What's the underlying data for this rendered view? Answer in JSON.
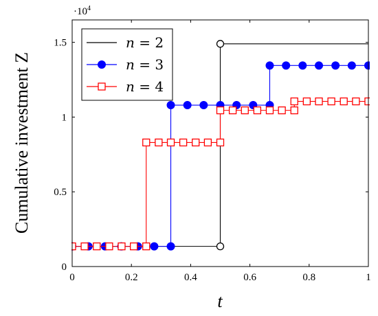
{
  "chart_data": {
    "type": "line",
    "step": true,
    "xlabel": "t",
    "ylabel": "Cumulative investment Z",
    "yscale_label": "·10",
    "yscale_exponent": "4",
    "xlim": [
      0,
      1
    ],
    "ylim": [
      0,
      16500
    ],
    "xticks": [
      0,
      0.2,
      0.4,
      0.6,
      0.8,
      1
    ],
    "xtick_labels": [
      "0",
      "0.2",
      "0.4",
      "0.6",
      "0.8",
      "1"
    ],
    "yticks": [
      0,
      5000,
      10000,
      15000
    ],
    "ytick_labels": [
      "0",
      "0.5",
      "1",
      "1.5"
    ],
    "grid": false,
    "legend_position": "top-left",
    "series": [
      {
        "name": "n = 2",
        "legend_var": "n",
        "legend_eq": "= 2",
        "color": "#000000",
        "marker": "open-circle",
        "steps": [
          {
            "x0": 0,
            "x1": 0.5,
            "y": 1350
          },
          {
            "x0": 0.5,
            "x1": 1,
            "y": 14900
          }
        ],
        "markers": [
          {
            "x": 0.5,
            "y": 1350
          },
          {
            "x": 0.5,
            "y": 14900
          }
        ]
      },
      {
        "name": "n = 3",
        "legend_var": "n",
        "legend_eq": "= 3",
        "color": "#0000ff",
        "marker": "filled-circle",
        "steps": [
          {
            "x0": 0,
            "x1": 0.333,
            "y": 1350
          },
          {
            "x0": 0.333,
            "x1": 0.667,
            "y": 10800
          },
          {
            "x0": 0.667,
            "x1": 1,
            "y": 13450
          }
        ],
        "markers": [
          {
            "x": 0,
            "y": 1350
          },
          {
            "x": 0.055,
            "y": 1350
          },
          {
            "x": 0.111,
            "y": 1350
          },
          {
            "x": 0.166,
            "y": 1350
          },
          {
            "x": 0.222,
            "y": 1350
          },
          {
            "x": 0.277,
            "y": 1350
          },
          {
            "x": 0.333,
            "y": 1350
          },
          {
            "x": 0.333,
            "y": 10800
          },
          {
            "x": 0.389,
            "y": 10800
          },
          {
            "x": 0.444,
            "y": 10800
          },
          {
            "x": 0.5,
            "y": 10800
          },
          {
            "x": 0.555,
            "y": 10800
          },
          {
            "x": 0.611,
            "y": 10800
          },
          {
            "x": 0.667,
            "y": 10800
          },
          {
            "x": 0.667,
            "y": 13450
          },
          {
            "x": 0.722,
            "y": 13450
          },
          {
            "x": 0.778,
            "y": 13450
          },
          {
            "x": 0.833,
            "y": 13450
          },
          {
            "x": 0.889,
            "y": 13450
          },
          {
            "x": 0.944,
            "y": 13450
          },
          {
            "x": 1,
            "y": 13450
          }
        ]
      },
      {
        "name": "n = 4",
        "legend_var": "n",
        "legend_eq": "= 4",
        "color": "#ff0000",
        "marker": "open-square",
        "steps": [
          {
            "x0": 0,
            "x1": 0.25,
            "y": 1350
          },
          {
            "x0": 0.25,
            "x1": 0.5,
            "y": 8300
          },
          {
            "x0": 0.5,
            "x1": 0.75,
            "y": 10450
          },
          {
            "x0": 0.75,
            "x1": 1,
            "y": 11050
          }
        ],
        "markers": [
          {
            "x": 0,
            "y": 1350
          },
          {
            "x": 0.042,
            "y": 1350
          },
          {
            "x": 0.083,
            "y": 1350
          },
          {
            "x": 0.125,
            "y": 1350
          },
          {
            "x": 0.167,
            "y": 1350
          },
          {
            "x": 0.208,
            "y": 1350
          },
          {
            "x": 0.25,
            "y": 1350
          },
          {
            "x": 0.25,
            "y": 8300
          },
          {
            "x": 0.292,
            "y": 8300
          },
          {
            "x": 0.333,
            "y": 8300
          },
          {
            "x": 0.375,
            "y": 8300
          },
          {
            "x": 0.417,
            "y": 8300
          },
          {
            "x": 0.458,
            "y": 8300
          },
          {
            "x": 0.5,
            "y": 8300
          },
          {
            "x": 0.5,
            "y": 10450
          },
          {
            "x": 0.542,
            "y": 10450
          },
          {
            "x": 0.583,
            "y": 10450
          },
          {
            "x": 0.625,
            "y": 10450
          },
          {
            "x": 0.667,
            "y": 10450
          },
          {
            "x": 0.708,
            "y": 10450
          },
          {
            "x": 0.75,
            "y": 10450
          },
          {
            "x": 0.75,
            "y": 11050
          },
          {
            "x": 0.792,
            "y": 11050
          },
          {
            "x": 0.833,
            "y": 11050
          },
          {
            "x": 0.875,
            "y": 11050
          },
          {
            "x": 0.917,
            "y": 11050
          },
          {
            "x": 0.958,
            "y": 11050
          },
          {
            "x": 1,
            "y": 11050
          }
        ]
      }
    ]
  }
}
